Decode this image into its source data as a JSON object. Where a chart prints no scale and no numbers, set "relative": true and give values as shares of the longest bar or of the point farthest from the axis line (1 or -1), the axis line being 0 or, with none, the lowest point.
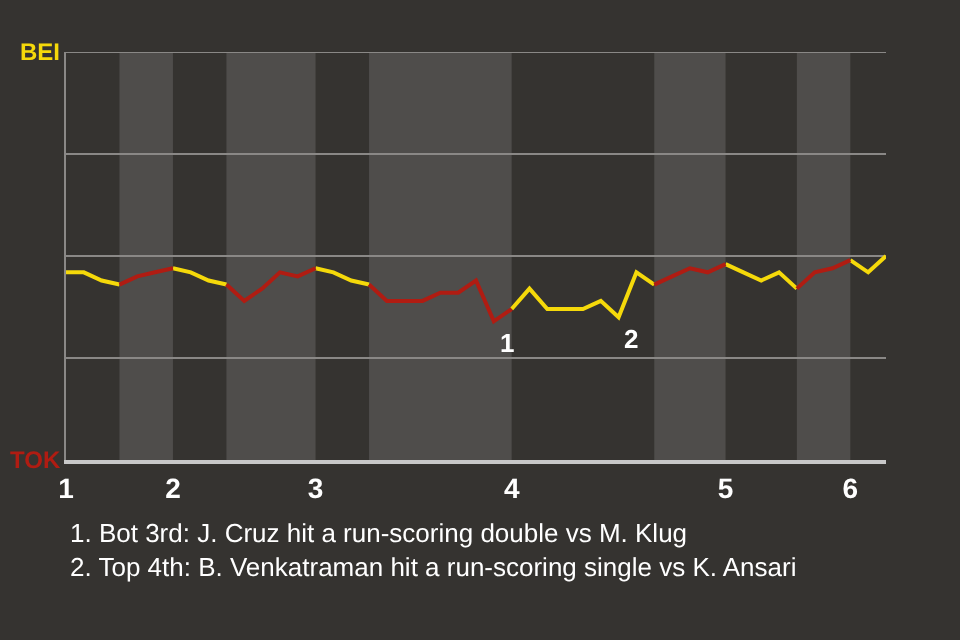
{
  "chart_data": {
    "type": "line",
    "relative": true,
    "categories": [
      "1",
      null,
      null,
      null,
      null,
      null,
      "2",
      null,
      null,
      null,
      null,
      null,
      null,
      null,
      "3",
      null,
      null,
      null,
      null,
      null,
      null,
      null,
      null,
      null,
      null,
      "4",
      null,
      null,
      null,
      null,
      null,
      null,
      null,
      null,
      null,
      null,
      null,
      "5",
      null,
      null,
      null,
      null,
      null,
      null,
      "6",
      null,
      null
    ],
    "series": [
      {
        "name": "BEI",
        "color": "#f5d90a",
        "values": [
          0.92,
          0.92,
          0.88,
          0.86,
          null,
          null,
          0.94,
          0.92,
          0.88,
          0.86,
          null,
          null,
          null,
          null,
          0.94,
          0.92,
          0.88,
          0.86,
          null,
          null,
          null,
          null,
          null,
          null,
          null,
          0.74,
          0.84,
          0.74,
          0.74,
          0.74,
          0.78,
          0.7,
          0.92,
          0.86,
          null,
          null,
          null,
          0.96,
          0.92,
          0.88,
          0.92,
          0.84,
          null,
          null,
          0.98,
          0.92,
          1
        ]
      },
      {
        "name": "TOK",
        "color": "#b01c12",
        "values": [
          null,
          null,
          null,
          0.86,
          0.9,
          0.92,
          0.94,
          null,
          null,
          0.86,
          0.78,
          0.84,
          0.92,
          0.9,
          0.94,
          null,
          null,
          0.86,
          0.78,
          0.78,
          0.78,
          0.82,
          0.82,
          0.88,
          0.68,
          0.74,
          null,
          null,
          null,
          null,
          null,
          null,
          null,
          0.86,
          0.9,
          0.94,
          0.92,
          0.96,
          null,
          null,
          null,
          0.84,
          0.92,
          0.94,
          0.98,
          null,
          null
        ]
      }
    ],
    "ref_lines": [
      {
        "axis": "y",
        "value": 0.5,
        "color": "#8a8886"
      },
      {
        "axis": "y",
        "value": 1,
        "color": "#8a8886"
      },
      {
        "axis": "y",
        "value": 1.5,
        "color": "#8a8886"
      },
      {
        "axis": "y",
        "value": 2,
        "color": "#8a8886"
      }
    ],
    "annotations": [
      {
        "text": "1",
        "y": 0.68
      },
      {
        "text": "2",
        "y": 0.7
      },
      "1. Bot 3rd: J. Cruz hit a run-scoring double vs M. Klug",
      "2. Top 4th: B. Venkatraman hit a run-scoring single vs K. Ansari"
    ]
  }
}
